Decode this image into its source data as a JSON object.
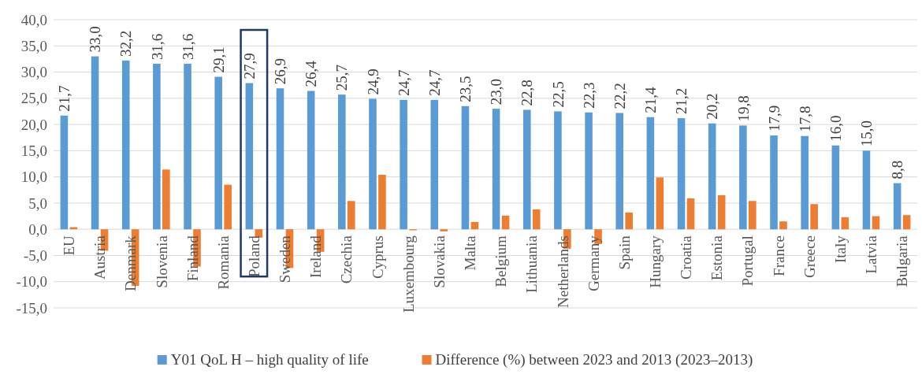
{
  "chart_data": {
    "type": "bar",
    "categories": [
      "EU",
      "Austria",
      "Denmark",
      "Slovenia",
      "Finland",
      "Romania",
      "Poland",
      "Sweden",
      "Ireland",
      "Czechia",
      "Cyprus",
      "Luxembourg",
      "Slovakia",
      "Malta",
      "Belgium",
      "Lithuania",
      "Netherlands",
      "Germany",
      "Spain",
      "Hungary",
      "Croatia",
      "Estonia",
      "Portugal",
      "France",
      "Greece",
      "Italy",
      "Latvia",
      "Bulgaria"
    ],
    "series": [
      {
        "name": "Y01 QoL  H – high quality of life",
        "color": "#5b9bd5",
        "values": [
          21.7,
          33.0,
          32.2,
          31.6,
          31.6,
          29.1,
          27.9,
          26.9,
          26.4,
          25.7,
          24.9,
          24.7,
          24.7,
          23.5,
          23.0,
          22.8,
          22.5,
          22.3,
          22.2,
          21.4,
          21.2,
          20.2,
          19.8,
          17.9,
          17.8,
          16.0,
          15.0,
          8.8
        ],
        "value_labels": [
          "21,7",
          "33,0",
          "32,2",
          "31,6",
          "31,6",
          "29,1",
          "27,9",
          "26,9",
          "26,4",
          "25,7",
          "24,9",
          "24,7",
          "24,7",
          "23,5",
          "23,0",
          "22,8",
          "22,5",
          "22,3",
          "22,2",
          "21,4",
          "21,2",
          "20,2",
          "19,8",
          "17,9",
          "17,8",
          "16,0",
          "15,0",
          "8,8"
        ]
      },
      {
        "name": "Difference (%) between 2023 and 2013 (2023–2013)",
        "color": "#ed7d31",
        "values": [
          0.4,
          -4.1,
          -10.8,
          11.4,
          -7.1,
          8.5,
          -1.6,
          -7.4,
          -4.3,
          5.4,
          10.4,
          -0.2,
          -0.4,
          1.4,
          2.6,
          3.8,
          -3.7,
          -2.8,
          3.2,
          9.9,
          5.9,
          6.5,
          5.4,
          1.5,
          4.8,
          2.3,
          2.5,
          2.7
        ]
      }
    ],
    "ylim": [
      -15,
      40
    ],
    "yticks": [
      {
        "value": -15,
        "label": "-15,0"
      },
      {
        "value": -10,
        "label": "-10,0"
      },
      {
        "value": -5,
        "label": "-5,0"
      },
      {
        "value": 0,
        "label": "0,0"
      },
      {
        "value": 5,
        "label": "5,0"
      },
      {
        "value": 10,
        "label": "10,0"
      },
      {
        "value": 15,
        "label": "15,0"
      },
      {
        "value": 20,
        "label": "20,0"
      },
      {
        "value": 25,
        "label": "25,0"
      },
      {
        "value": 30,
        "label": "30,0"
      },
      {
        "value": 35,
        "label": "35,0"
      },
      {
        "value": 40,
        "label": "40,0"
      }
    ],
    "grid": "y",
    "legend": "bottom"
  }
}
